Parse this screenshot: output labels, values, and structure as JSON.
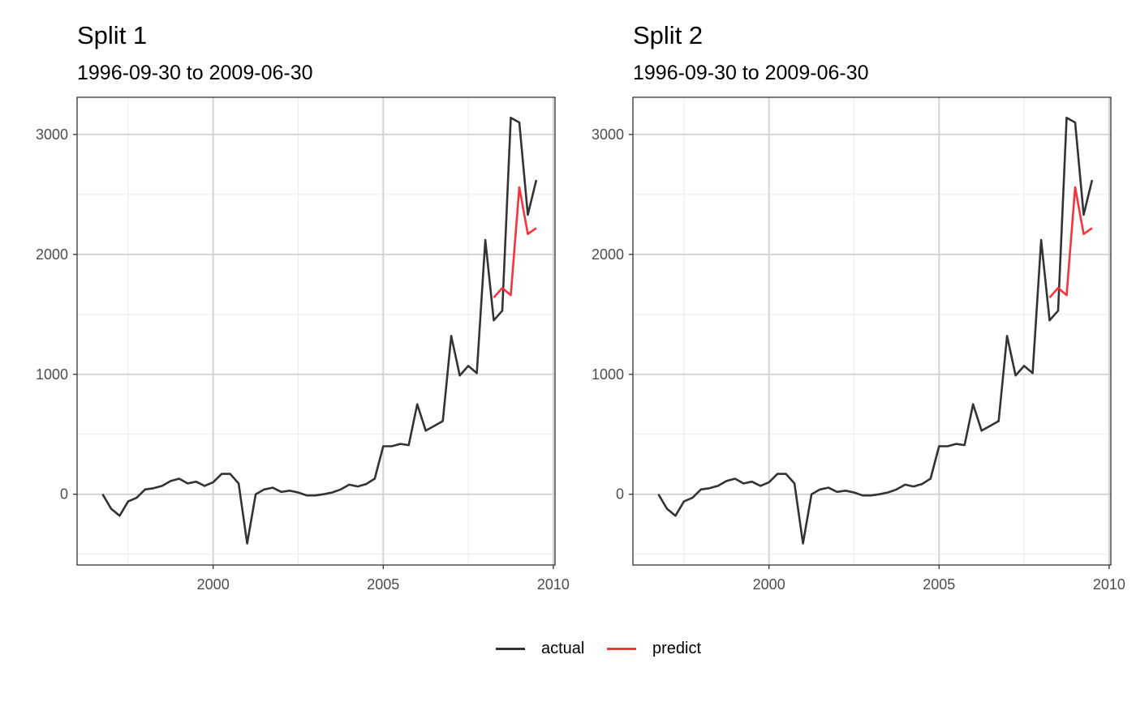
{
  "legend": {
    "items": [
      {
        "label": "actual",
        "color": "#333333"
      },
      {
        "label": "predict",
        "color": "#F8333C"
      }
    ]
  },
  "chart_data": [
    {
      "type": "line",
      "title": "Split 1",
      "subtitle": "1996-09-30 to 2009-06-30",
      "xlabel": "",
      "ylabel": "",
      "xlim": [
        1996.0,
        2010.05
      ],
      "ylim": [
        -590,
        3310
      ],
      "xticks": [
        2000,
        2005,
        2010
      ],
      "yticks": [
        0,
        1000,
        2000,
        3000
      ],
      "grid": true,
      "legend_position": "bottom",
      "series": [
        {
          "name": "actual",
          "color": "#333333",
          "x": [
            1996.75,
            1997.0,
            1997.25,
            1997.5,
            1997.75,
            1998.0,
            1998.25,
            1998.5,
            1998.75,
            1999.0,
            1999.25,
            1999.5,
            1999.75,
            2000.0,
            2000.25,
            2000.5,
            2000.75,
            2001.0,
            2001.25,
            2001.5,
            2001.75,
            2002.0,
            2002.25,
            2002.5,
            2002.75,
            2003.0,
            2003.25,
            2003.5,
            2003.75,
            2004.0,
            2004.25,
            2004.5,
            2004.75,
            2005.0,
            2005.25,
            2005.5,
            2005.75,
            2006.0,
            2006.25,
            2006.5,
            2006.75,
            2007.0,
            2007.25,
            2007.5,
            2007.75,
            2008.0,
            2008.25,
            2008.5,
            2008.75,
            2009.0,
            2009.25,
            2009.5
          ],
          "y": [
            0,
            -120,
            -180,
            -60,
            -30,
            40,
            50,
            70,
            110,
            130,
            90,
            105,
            70,
            100,
            170,
            170,
            90,
            -410,
            0,
            40,
            55,
            20,
            30,
            15,
            -10,
            -10,
            0,
            15,
            40,
            80,
            65,
            85,
            130,
            400,
            400,
            420,
            410,
            750,
            530,
            570,
            610,
            1320,
            990,
            1070,
            1010,
            2120,
            1450,
            1530,
            3140,
            3100,
            2330,
            2620
          ]
        },
        {
          "name": "predict",
          "color": "#F8333C",
          "x": [
            2008.25,
            2008.5,
            2008.75,
            2009.0,
            2009.25,
            2009.5
          ],
          "y": [
            1640,
            1720,
            1660,
            2560,
            2170,
            2220
          ]
        }
      ]
    },
    {
      "type": "line",
      "title": "Split 2",
      "subtitle": "1996-09-30 to 2009-06-30",
      "xlabel": "",
      "ylabel": "",
      "xlim": [
        1996.0,
        2010.05
      ],
      "ylim": [
        -590,
        3310
      ],
      "xticks": [
        2000,
        2005,
        2010
      ],
      "yticks": [
        0,
        1000,
        2000,
        3000
      ],
      "grid": true,
      "legend_position": "bottom",
      "series": [
        {
          "name": "actual",
          "color": "#333333",
          "x": [
            1996.75,
            1997.0,
            1997.25,
            1997.5,
            1997.75,
            1998.0,
            1998.25,
            1998.5,
            1998.75,
            1999.0,
            1999.25,
            1999.5,
            1999.75,
            2000.0,
            2000.25,
            2000.5,
            2000.75,
            2001.0,
            2001.25,
            2001.5,
            2001.75,
            2002.0,
            2002.25,
            2002.5,
            2002.75,
            2003.0,
            2003.25,
            2003.5,
            2003.75,
            2004.0,
            2004.25,
            2004.5,
            2004.75,
            2005.0,
            2005.25,
            2005.5,
            2005.75,
            2006.0,
            2006.25,
            2006.5,
            2006.75,
            2007.0,
            2007.25,
            2007.5,
            2007.75,
            2008.0,
            2008.25,
            2008.5,
            2008.75,
            2009.0,
            2009.25,
            2009.5
          ],
          "y": [
            0,
            -120,
            -180,
            -60,
            -30,
            40,
            50,
            70,
            110,
            130,
            90,
            105,
            70,
            100,
            170,
            170,
            90,
            -410,
            0,
            40,
            55,
            20,
            30,
            15,
            -10,
            -10,
            0,
            15,
            40,
            80,
            65,
            85,
            130,
            400,
            400,
            420,
            410,
            750,
            530,
            570,
            610,
            1320,
            990,
            1070,
            1010,
            2120,
            1450,
            1530,
            3140,
            3100,
            2330,
            2620
          ]
        },
        {
          "name": "predict",
          "color": "#F8333C",
          "x": [
            2008.25,
            2008.5,
            2008.75,
            2009.0,
            2009.25,
            2009.5
          ],
          "y": [
            1640,
            1720,
            1660,
            2560,
            2170,
            2220
          ]
        }
      ]
    }
  ]
}
